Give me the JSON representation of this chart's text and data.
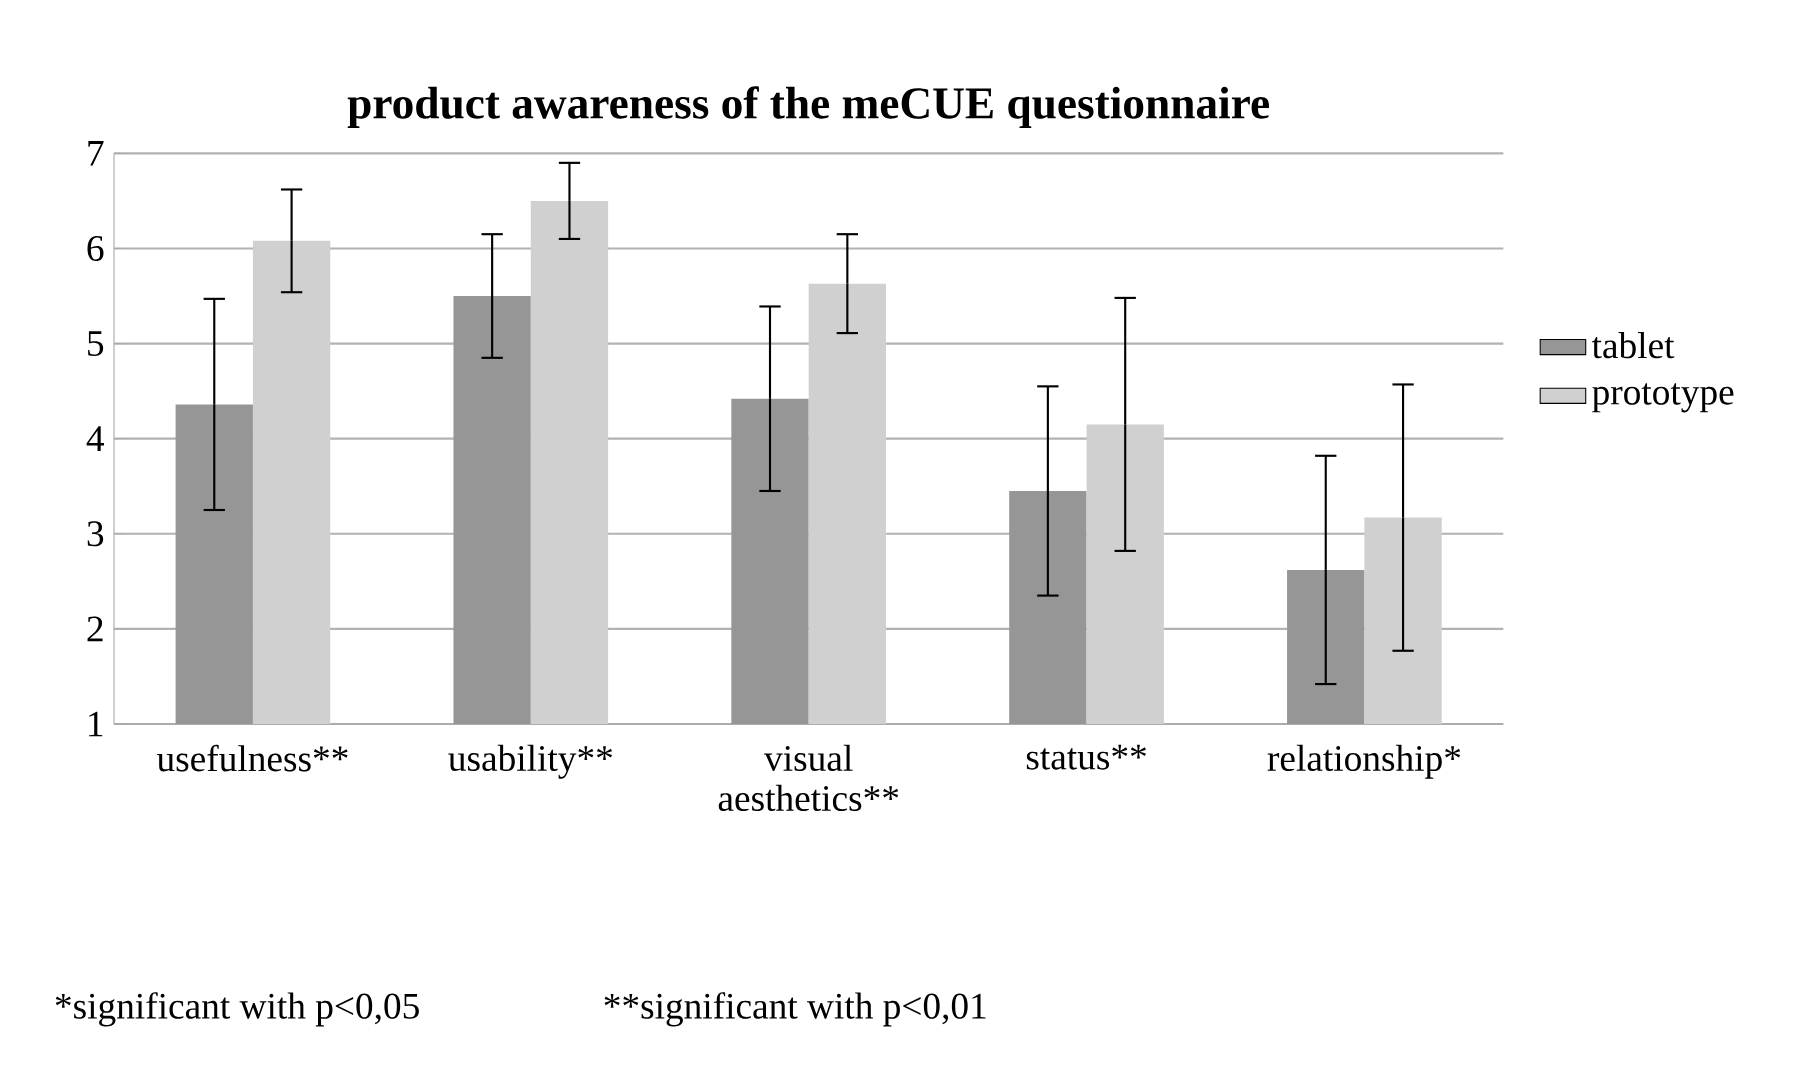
{
  "chart_data": {
    "type": "bar",
    "title": "product awareness of the meCUE questionnaire",
    "categories": [
      "usefulness**",
      "usability**",
      "visual aesthetics**",
      "status**",
      "relationship*"
    ],
    "series": [
      {
        "name": "tablet",
        "color": "#969696",
        "values": [
          4.36,
          5.5,
          4.42,
          3.45,
          2.62
        ],
        "errors": [
          1.11,
          0.65,
          0.97,
          1.1,
          1.2
        ]
      },
      {
        "name": "prototype",
        "color": "#d0d0d0",
        "values": [
          6.08,
          6.5,
          5.63,
          4.15,
          3.17
        ],
        "errors": [
          0.54,
          0.4,
          0.52,
          1.33,
          1.4
        ]
      }
    ],
    "ylim": [
      1,
      7
    ],
    "yticks": [
      1,
      2,
      3,
      4,
      5,
      6,
      7
    ],
    "grid": "y",
    "legend": "right",
    "annotations": [
      "*significant with p<0,05",
      "**significant with p<0,01"
    ]
  }
}
